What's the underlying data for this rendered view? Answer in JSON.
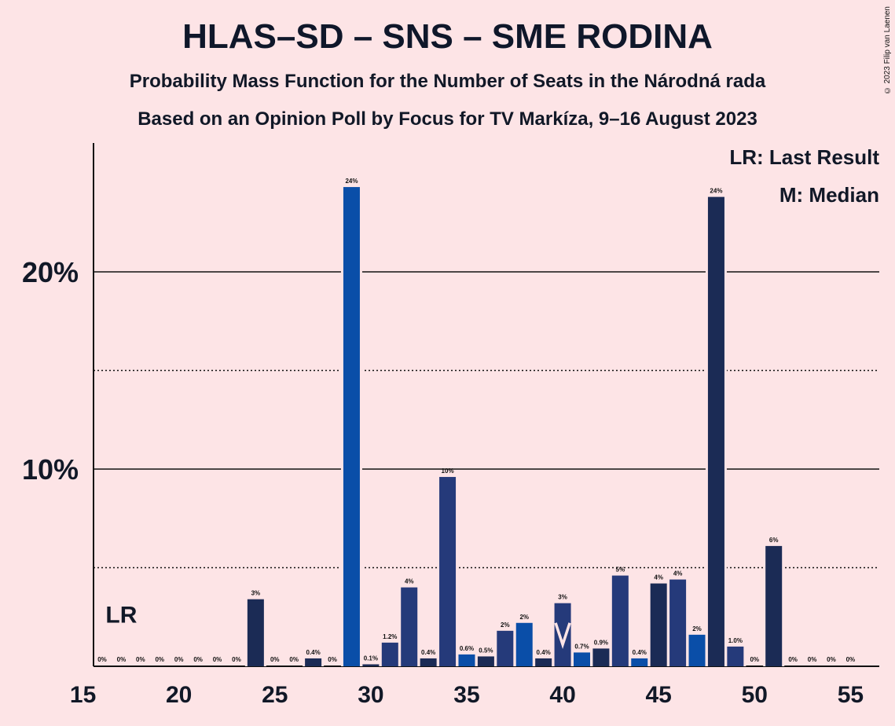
{
  "title": "HLAS–SD – SNS – SME RODINA",
  "subtitle1": "Probability Mass Function for the Number of Seats in the Národná rada",
  "subtitle2": "Based on an Opinion Poll by Focus for TV Markíza, 9–16 August 2023",
  "copyright": "© 2023 Filip van Laenen",
  "legend": {
    "lr": "LR: Last Result",
    "m": "M: Median"
  },
  "lr_marker": {
    "label": "LR",
    "seat": 17
  },
  "median_marker": {
    "label": "M",
    "seat": 40
  },
  "colors": {
    "background": "#fde4e6",
    "hlas": "#1b2b55",
    "sns": "#0a4ea8",
    "smerodina": "#253a7a"
  },
  "chart_data": {
    "type": "bar",
    "xlabel": "",
    "ylabel": "",
    "xlim": [
      15,
      55
    ],
    "ylim": [
      0,
      26.5
    ],
    "x_ticks": [
      15,
      20,
      25,
      30,
      35,
      40,
      45,
      50,
      55
    ],
    "x_tick_labels": [
      "15",
      "20",
      "25",
      "30",
      "35",
      "40",
      "45",
      "50",
      "55"
    ],
    "y_ticks_major": [
      10,
      20
    ],
    "y_tick_labels": [
      "10%",
      "20%"
    ],
    "y_ticks_minor": [
      5,
      15
    ],
    "grid": true,
    "bars": [
      {
        "x": 16,
        "value": 0,
        "label": "0%",
        "color": "hlas"
      },
      {
        "x": 17,
        "value": 0,
        "label": "0%",
        "color": "hlas"
      },
      {
        "x": 18,
        "value": 0,
        "label": "0%",
        "color": "hlas"
      },
      {
        "x": 19,
        "value": 0,
        "label": "0%",
        "color": "hlas"
      },
      {
        "x": 20,
        "value": 0,
        "label": "0%",
        "color": "hlas"
      },
      {
        "x": 21,
        "value": 0,
        "label": "0%",
        "color": "hlas"
      },
      {
        "x": 22,
        "value": 0,
        "label": "0%",
        "color": "hlas"
      },
      {
        "x": 23,
        "value": 0,
        "label": "0%",
        "color": "hlas"
      },
      {
        "x": 24,
        "value": 3.4,
        "label": "3%",
        "color": "hlas"
      },
      {
        "x": 25,
        "value": 0,
        "label": "0%",
        "color": "hlas"
      },
      {
        "x": 26,
        "value": 0,
        "label": "0%",
        "color": "hlas"
      },
      {
        "x": 27,
        "value": 0.4,
        "label": "0.4%",
        "color": "hlas"
      },
      {
        "x": 28,
        "value": 0,
        "label": "0%",
        "color": "hlas"
      },
      {
        "x": 29,
        "value": 24.3,
        "label": "24%",
        "color": "sns"
      },
      {
        "x": 30,
        "value": 0.1,
        "label": "0.1%",
        "color": "hlas"
      },
      {
        "x": 31,
        "value": 1.2,
        "label": "1.2%",
        "color": "smerodina"
      },
      {
        "x": 32,
        "value": 4.0,
        "label": "4%",
        "color": "smerodina"
      },
      {
        "x": 33,
        "value": 0.4,
        "label": "0.4%",
        "color": "hlas"
      },
      {
        "x": 34,
        "value": 9.6,
        "label": "10%",
        "color": "smerodina"
      },
      {
        "x": 35,
        "value": 0.6,
        "label": "0.6%",
        "color": "sns"
      },
      {
        "x": 36,
        "value": 0.5,
        "label": "0.5%",
        "color": "hlas"
      },
      {
        "x": 37,
        "value": 1.8,
        "label": "2%",
        "color": "smerodina"
      },
      {
        "x": 38,
        "value": 2.2,
        "label": "2%",
        "color": "sns"
      },
      {
        "x": 39,
        "value": 0.4,
        "label": "0.4%",
        "color": "hlas"
      },
      {
        "x": 40,
        "value": 3.2,
        "label": "3%",
        "color": "smerodina"
      },
      {
        "x": 41,
        "value": 0.7,
        "label": "0.7%",
        "color": "sns"
      },
      {
        "x": 42,
        "value": 0.9,
        "label": "0.9%",
        "color": "hlas"
      },
      {
        "x": 43,
        "value": 4.6,
        "label": "5%",
        "color": "smerodina"
      },
      {
        "x": 44,
        "value": 0.4,
        "label": "0.4%",
        "color": "sns"
      },
      {
        "x": 45,
        "value": 4.2,
        "label": "4%",
        "color": "hlas"
      },
      {
        "x": 46,
        "value": 4.4,
        "label": "4%",
        "color": "smerodina"
      },
      {
        "x": 47,
        "value": 1.6,
        "label": "2%",
        "color": "sns"
      },
      {
        "x": 48,
        "value": 23.8,
        "label": "24%",
        "color": "hlas"
      },
      {
        "x": 49,
        "value": 1.0,
        "label": "1.0%",
        "color": "smerodina"
      },
      {
        "x": 50,
        "value": 0,
        "label": "0%",
        "color": "hlas"
      },
      {
        "x": 51,
        "value": 6.1,
        "label": "6%",
        "color": "hlas"
      },
      {
        "x": 52,
        "value": 0,
        "label": "0%",
        "color": "hlas"
      },
      {
        "x": 53,
        "value": 0,
        "label": "0%",
        "color": "hlas"
      },
      {
        "x": 54,
        "value": 0,
        "label": "0%",
        "color": "hlas"
      },
      {
        "x": 55,
        "value": 0,
        "label": "0%",
        "color": "hlas"
      }
    ]
  }
}
